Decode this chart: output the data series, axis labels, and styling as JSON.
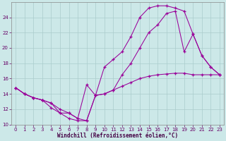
{
  "xlabel": "Windchill (Refroidissement éolien,°C)",
  "bg_color": "#cce8e8",
  "grid_color": "#aacccc",
  "line_color": "#990099",
  "xlim": [
    -0.5,
    23.5
  ],
  "ylim": [
    10,
    26
  ],
  "yticks": [
    10,
    12,
    14,
    16,
    18,
    20,
    22,
    24
  ],
  "xticks": [
    0,
    1,
    2,
    3,
    4,
    5,
    6,
    7,
    8,
    9,
    10,
    11,
    12,
    13,
    14,
    15,
    16,
    17,
    18,
    19,
    20,
    21,
    22,
    23
  ],
  "line1_x": [
    0,
    1,
    2,
    3,
    4,
    5,
    6,
    7,
    8,
    9,
    10,
    11,
    12,
    13,
    14,
    15,
    16,
    17,
    18,
    19,
    20,
    21,
    22,
    23
  ],
  "line1_y": [
    14.8,
    14.0,
    13.5,
    13.2,
    12.8,
    12.0,
    11.5,
    10.8,
    10.5,
    13.8,
    14.0,
    14.5,
    15.0,
    15.5,
    16.0,
    16.3,
    16.5,
    16.6,
    16.7,
    16.7,
    16.5,
    16.5,
    16.5,
    16.5
  ],
  "line2_x": [
    0,
    1,
    2,
    3,
    4,
    5,
    6,
    7,
    8,
    9,
    10,
    11,
    12,
    13,
    14,
    15,
    16,
    17,
    18,
    19,
    20,
    21,
    22,
    23
  ],
  "line2_y": [
    14.8,
    14.0,
    13.5,
    13.2,
    12.8,
    11.5,
    11.5,
    10.8,
    15.2,
    13.8,
    17.5,
    18.5,
    19.5,
    21.5,
    24.0,
    25.2,
    25.5,
    25.5,
    25.2,
    24.8,
    21.8,
    19.0,
    17.5,
    16.5
  ],
  "line3_x": [
    0,
    1,
    2,
    3,
    4,
    5,
    6,
    7,
    8,
    9,
    10,
    11,
    12,
    13,
    14,
    15,
    16,
    17,
    18,
    19,
    20,
    21,
    22,
    23
  ],
  "line3_y": [
    14.8,
    14.0,
    13.5,
    13.2,
    12.2,
    11.5,
    10.8,
    10.5,
    10.5,
    13.8,
    14.0,
    14.5,
    16.5,
    18.0,
    20.0,
    22.0,
    23.0,
    24.5,
    24.8,
    19.5,
    21.8,
    19.0,
    17.5,
    16.5
  ]
}
